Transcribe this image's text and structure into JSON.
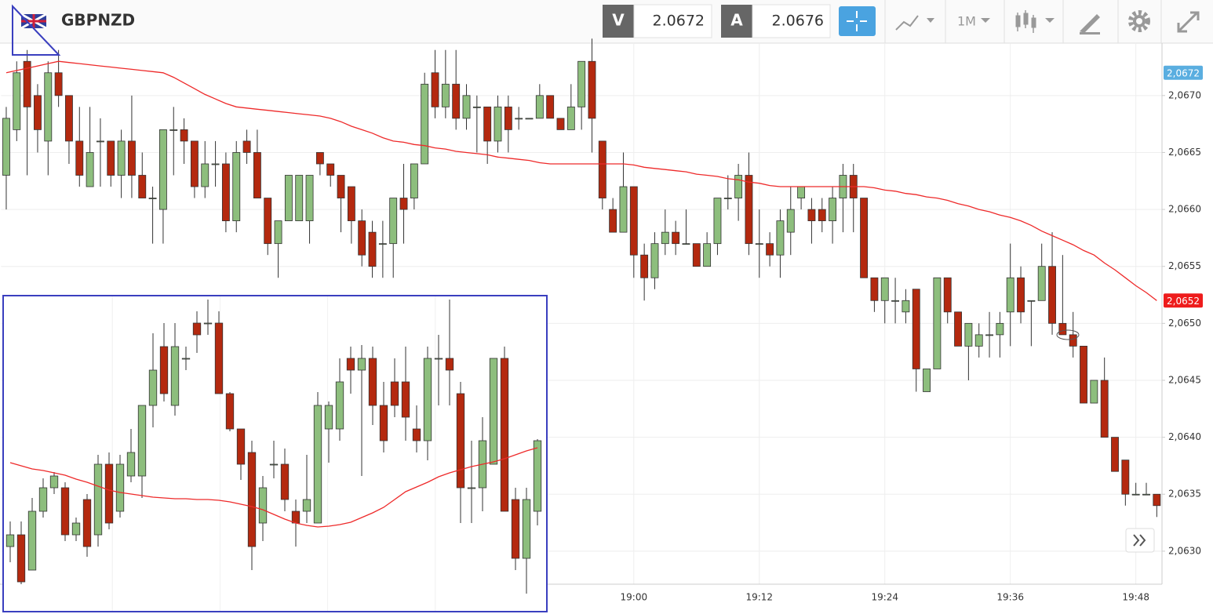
{
  "toolbar": {
    "symbol": "GBPNZD",
    "bid_label": "V",
    "bid": "2.0672",
    "ask_label": "A",
    "ask": "2.0676",
    "timeframe": "1M"
  },
  "chart_data": [
    {
      "type": "candlestick",
      "categories": [
        null,
        null,
        null,
        null,
        null,
        null,
        null,
        null,
        null,
        null,
        null,
        null,
        null,
        null,
        null,
        null,
        null,
        null,
        null,
        null,
        null,
        null,
        null,
        null,
        null,
        null,
        null,
        null,
        null,
        null,
        null,
        null,
        null,
        null,
        null,
        null,
        null,
        null,
        null,
        null,
        null,
        null,
        null,
        null,
        null,
        null,
        null,
        null,
        null,
        null,
        null,
        null,
        null,
        null,
        null,
        null,
        null,
        null,
        null,
        null,
        "19:00",
        null,
        null,
        null,
        null,
        null,
        null,
        null,
        null,
        null,
        null,
        null,
        "19:12",
        null,
        null,
        null,
        null,
        null,
        null,
        null,
        null,
        null,
        null,
        null,
        "19:24",
        null,
        null,
        null,
        null,
        null,
        null,
        null,
        null,
        null,
        null,
        null,
        "19:36",
        null,
        null,
        null,
        null,
        null,
        null,
        null,
        null,
        null,
        null,
        null,
        "19:48",
        null,
        null
      ],
      "open": [
        2.0663,
        2.0667,
        2.0673,
        2.067,
        2.0666,
        2.0672,
        2.067,
        2.0666,
        2.0662,
        2.0666,
        2.0666,
        2.0663,
        2.0666,
        2.0663,
        2.0661,
        2.066,
        2.0667,
        2.0667,
        2.0666,
        2.0662,
        2.0664,
        2.0664,
        2.0659,
        2.0666,
        2.0665,
        2.0661,
        2.0657,
        2.0659,
        2.0659,
        2.0659,
        2.0665,
        2.0664,
        2.0663,
        2.0662,
        2.0659,
        2.0658,
        2.0657,
        2.0657,
        2.0661,
        2.0661,
        2.0664,
        2.0672,
        2.0669,
        2.0671,
        2.0668,
        2.0669,
        2.0669,
        2.0666,
        2.0669,
        2.0668,
        2.0668,
        2.0668,
        2.067,
        2.0668,
        2.0667,
        2.0669,
        2.0673,
        2.0666,
        2.066,
        2.0658,
        2.0662,
        2.0656,
        2.0654,
        2.0657,
        2.0658,
        2.0657,
        2.0657,
        2.0655,
        2.0657,
        2.0661,
        2.0661,
        2.0663,
        2.0657,
        2.0657,
        2.0656,
        2.0658,
        2.0661,
        2.066,
        2.066,
        2.0659,
        2.0661,
        2.0663,
        2.0661,
        2.0654,
        2.0652,
        2.0652,
        2.0651,
        2.0653,
        2.0644,
        2.0646,
        2.0654,
        2.0651,
        2.0648,
        2.0648,
        2.0649,
        2.0649,
        2.0651,
        2.0654,
        2.0652,
        2.0652,
        2.0655,
        2.065,
        2.0649,
        2.0648,
        2.0643,
        2.0645,
        2.064,
        2.0638,
        2.0635,
        2.0635,
        2.0635
      ],
      "high": [
        2.0669,
        2.0673,
        2.0674,
        2.0671,
        2.0673,
        2.0674,
        2.067,
        2.0669,
        2.0669,
        2.0668,
        2.0666,
        2.0667,
        2.067,
        2.0665,
        2.0662,
        2.0667,
        2.0669,
        2.0668,
        2.0666,
        2.0666,
        2.0666,
        2.0665,
        2.0666,
        2.0667,
        2.0667,
        2.0661,
        2.0659,
        2.0663,
        2.0663,
        2.0663,
        2.0665,
        2.0664,
        2.0663,
        2.0662,
        2.066,
        2.0659,
        2.0659,
        2.0661,
        2.0664,
        2.0664,
        2.0672,
        2.0674,
        2.0674,
        2.0674,
        2.0671,
        2.067,
        2.0669,
        2.067,
        2.067,
        2.0669,
        2.0668,
        2.0671,
        2.067,
        2.0668,
        2.0671,
        2.0673,
        2.0675,
        2.0666,
        2.0661,
        2.0665,
        2.0662,
        2.0657,
        2.0658,
        2.066,
        2.0659,
        2.066,
        2.0657,
        2.0658,
        2.0661,
        2.0663,
        2.0664,
        2.0665,
        2.066,
        2.0658,
        2.066,
        2.0662,
        2.0662,
        2.0661,
        2.0661,
        2.0662,
        2.0664,
        2.0664,
        2.0661,
        2.0654,
        2.0654,
        2.0654,
        2.0653,
        2.0653,
        2.0646,
        2.0654,
        2.0654,
        2.0651,
        2.065,
        2.065,
        2.0651,
        2.0651,
        2.0657,
        2.0655,
        2.0652,
        2.0657,
        2.0658,
        2.0656,
        2.0651,
        2.0648,
        2.0645,
        2.0647,
        2.064,
        2.0638,
        2.0636,
        2.0636,
        2.0635
      ],
      "low": [
        2.066,
        2.0666,
        2.0663,
        2.0665,
        2.0663,
        2.0669,
        2.0664,
        2.0662,
        2.0662,
        2.0662,
        2.0662,
        2.0661,
        2.0661,
        2.0661,
        2.0657,
        2.0657,
        2.0663,
        2.0664,
        2.0661,
        2.0661,
        2.0662,
        2.0658,
        2.0658,
        2.0664,
        2.0661,
        2.0656,
        2.0654,
        2.0659,
        2.0659,
        2.0657,
        2.0663,
        2.0662,
        2.0658,
        2.0657,
        2.0655,
        2.0654,
        2.0654,
        2.0654,
        2.0657,
        2.066,
        2.0664,
        2.0668,
        2.0668,
        2.0667,
        2.0667,
        2.0665,
        2.0664,
        2.0665,
        2.0665,
        2.0667,
        2.0668,
        2.0668,
        2.0668,
        2.0667,
        2.0667,
        2.0667,
        2.0665,
        2.066,
        2.0658,
        2.0658,
        2.0654,
        2.0652,
        2.0653,
        2.0656,
        2.0656,
        2.0657,
        2.0655,
        2.0655,
        2.0656,
        2.066,
        2.0659,
        2.0656,
        2.0654,
        2.0655,
        2.0654,
        2.0656,
        2.066,
        2.0657,
        2.0658,
        2.0657,
        2.0658,
        2.0658,
        2.0654,
        2.0651,
        2.065,
        2.065,
        2.065,
        2.0644,
        2.0644,
        2.0646,
        2.065,
        2.0648,
        2.0645,
        2.0647,
        2.0647,
        2.0647,
        2.0648,
        2.065,
        2.0648,
        2.0652,
        2.0649,
        2.0649,
        2.0647,
        2.0643,
        2.0643,
        2.064,
        2.0637,
        2.0634,
        2.0635,
        2.0635,
        2.0633
      ],
      "close": [
        2.0668,
        2.0672,
        2.0669,
        2.0667,
        2.0672,
        2.067,
        2.0666,
        2.0663,
        2.0665,
        2.0666,
        2.0663,
        2.0666,
        2.0663,
        2.0661,
        2.0661,
        2.0667,
        2.0667,
        2.0666,
        2.0662,
        2.0664,
        2.0664,
        2.0659,
        2.0665,
        2.0665,
        2.0661,
        2.0657,
        2.0659,
        2.0663,
        2.0663,
        2.0663,
        2.0664,
        2.0663,
        2.0661,
        2.0659,
        2.0656,
        2.0655,
        2.0657,
        2.0661,
        2.066,
        2.0664,
        2.0671,
        2.0669,
        2.0671,
        2.0668,
        2.067,
        2.0669,
        2.0666,
        2.0669,
        2.0667,
        2.0668,
        2.0668,
        2.067,
        2.0668,
        2.0667,
        2.0669,
        2.0673,
        2.0668,
        2.0661,
        2.0658,
        2.0662,
        2.0656,
        2.0654,
        2.0657,
        2.0658,
        2.0657,
        2.0657,
        2.0655,
        2.0657,
        2.0661,
        2.0661,
        2.0663,
        2.0657,
        2.0657,
        2.0656,
        2.0659,
        2.066,
        2.0662,
        2.0659,
        2.0659,
        2.0661,
        2.0663,
        2.0661,
        2.0654,
        2.0652,
        2.0654,
        2.0652,
        2.0652,
        2.0646,
        2.0646,
        2.0654,
        2.0651,
        2.0648,
        2.065,
        2.0649,
        2.0649,
        2.065,
        2.0654,
        2.0651,
        2.0652,
        2.0655,
        2.065,
        2.0649,
        2.0648,
        2.0643,
        2.0645,
        2.064,
        2.0637,
        2.0635,
        2.0635,
        2.0635,
        2.0634
      ],
      "up_color": "#8dbe7d",
      "down_color": "#b4290f",
      "ma": {
        "color": "#ee2a2a",
        "values": [
          2.0672,
          2.06722,
          2.06724,
          2.06726,
          2.06728,
          2.0673,
          2.06729,
          2.06728,
          2.06727,
          2.06726,
          2.06725,
          2.06724,
          2.06723,
          2.06722,
          2.06721,
          2.0672,
          2.06716,
          2.06711,
          2.06706,
          2.06701,
          2.06697,
          2.06693,
          2.0669,
          2.06689,
          2.06688,
          2.06687,
          2.06686,
          2.06685,
          2.06684,
          2.06683,
          2.06682,
          2.0668,
          2.06677,
          2.06673,
          2.0667,
          2.06667,
          2.06663,
          2.0666,
          2.06659,
          2.06657,
          2.06656,
          2.06654,
          2.06653,
          2.06651,
          2.0665,
          2.06649,
          2.06648,
          2.06646,
          2.06645,
          2.06644,
          2.06643,
          2.06641,
          2.0664,
          2.0664,
          2.0664,
          2.0664,
          2.0664,
          2.0664,
          2.0664,
          2.0664,
          2.06639,
          2.06637,
          2.06636,
          2.06635,
          2.06634,
          2.06633,
          2.06631,
          2.0663,
          2.06629,
          2.06627,
          2.06626,
          2.06624,
          2.06623,
          2.06621,
          2.0662,
          2.0662,
          2.0662,
          2.0662,
          2.0662,
          2.0662,
          2.0662,
          2.0662,
          2.0662,
          2.06619,
          2.06617,
          2.06616,
          2.06614,
          2.06613,
          2.06611,
          2.0661,
          2.06608,
          2.06605,
          2.06603,
          2.066,
          2.06598,
          2.06595,
          2.06593,
          2.0659,
          2.06586,
          2.06581,
          2.06577,
          2.06573,
          2.06569,
          2.06564,
          2.0656,
          2.06553,
          2.06547,
          2.0654,
          2.06533,
          2.06527,
          2.0652
        ]
      },
      "ylim": [
        2.06271,
        2.06746
      ],
      "yticks": [
        {
          "value": 2.063,
          "label": "2,0630"
        },
        {
          "value": 2.0635,
          "label": "2,0635"
        },
        {
          "value": 2.064,
          "label": "2,0640"
        },
        {
          "value": 2.0645,
          "label": "2,0645"
        },
        {
          "value": 2.065,
          "label": "2,0650"
        },
        {
          "value": 2.0655,
          "label": "2,0655"
        },
        {
          "value": 2.066,
          "label": "2,0660"
        },
        {
          "value": 2.0665,
          "label": "2,0665"
        },
        {
          "value": 2.067,
          "label": "2,0670"
        }
      ],
      "price_tags": [
        {
          "value": 2.0672,
          "label": "2,0672",
          "color": "#5aaee0"
        },
        {
          "value": 2.0652,
          "label": "2,0652",
          "color": "#ee1c1c"
        }
      ],
      "grid": true
    },
    {
      "type": "candlestick",
      "open": [
        83,
        98,
        53,
        128,
        158,
        158,
        98,
        143,
        98,
        188,
        128,
        173,
        173,
        263,
        338,
        263,
        323,
        368,
        368,
        368,
        278,
        233,
        203,
        113,
        188,
        188,
        128,
        128,
        113,
        233,
        233,
        323,
        308,
        323,
        263,
        293,
        293,
        233,
        218,
        323,
        323,
        278,
        158,
        158,
        188,
        323,
        143,
        68,
        128
      ],
      "high": [
        115,
        115,
        145,
        170,
        178,
        165,
        120,
        150,
        200,
        203,
        200,
        233,
        263,
        355,
        368,
        368,
        338,
        383,
        398,
        383,
        280,
        233,
        218,
        173,
        218,
        208,
        143,
        200,
        280,
        268,
        323,
        338,
        340,
        338,
        293,
        323,
        338,
        263,
        338,
        353,
        398,
        293,
        218,
        248,
        323,
        338,
        158,
        158,
        220
      ],
      "low": [
        63,
        35,
        53,
        120,
        150,
        90,
        90,
        70,
        83,
        105,
        120,
        165,
        145,
        235,
        268,
        250,
        308,
        330,
        353,
        278,
        230,
        168,
        53,
        90,
        170,
        128,
        83,
        113,
        113,
        190,
        218,
        278,
        173,
        238,
        203,
        248,
        218,
        203,
        193,
        263,
        263,
        113,
        113,
        128,
        188,
        128,
        53,
        23,
        110
      ],
      "close": [
        98,
        38,
        128,
        158,
        173,
        98,
        113,
        83,
        188,
        113,
        188,
        203,
        263,
        308,
        278,
        338,
        323,
        353,
        368,
        278,
        233,
        188,
        83,
        158,
        188,
        143,
        113,
        143,
        263,
        263,
        293,
        308,
        323,
        263,
        218,
        263,
        248,
        218,
        323,
        323,
        308,
        158,
        158,
        218,
        323,
        128,
        68,
        143,
        218
      ],
      "up_color": "#8dbe7d",
      "down_color": "#b4290f",
      "ma": {
        "color": "#ee2a2a",
        "values": [
          190,
          186,
          182,
          180,
          177,
          174,
          169,
          165,
          160,
          155,
          152,
          150,
          148,
          146,
          145,
          144,
          144,
          143,
          143,
          142,
          140,
          137,
          134,
          130,
          124,
          118,
          113,
          110,
          108,
          109,
          111,
          114,
          120,
          126,
          133,
          143,
          153,
          159,
          165,
          172,
          177,
          181,
          185,
          188,
          191,
          195,
          200,
          205,
          209
        ]
      },
      "ylim": [
        0,
        403
      ],
      "grid": true
    }
  ]
}
